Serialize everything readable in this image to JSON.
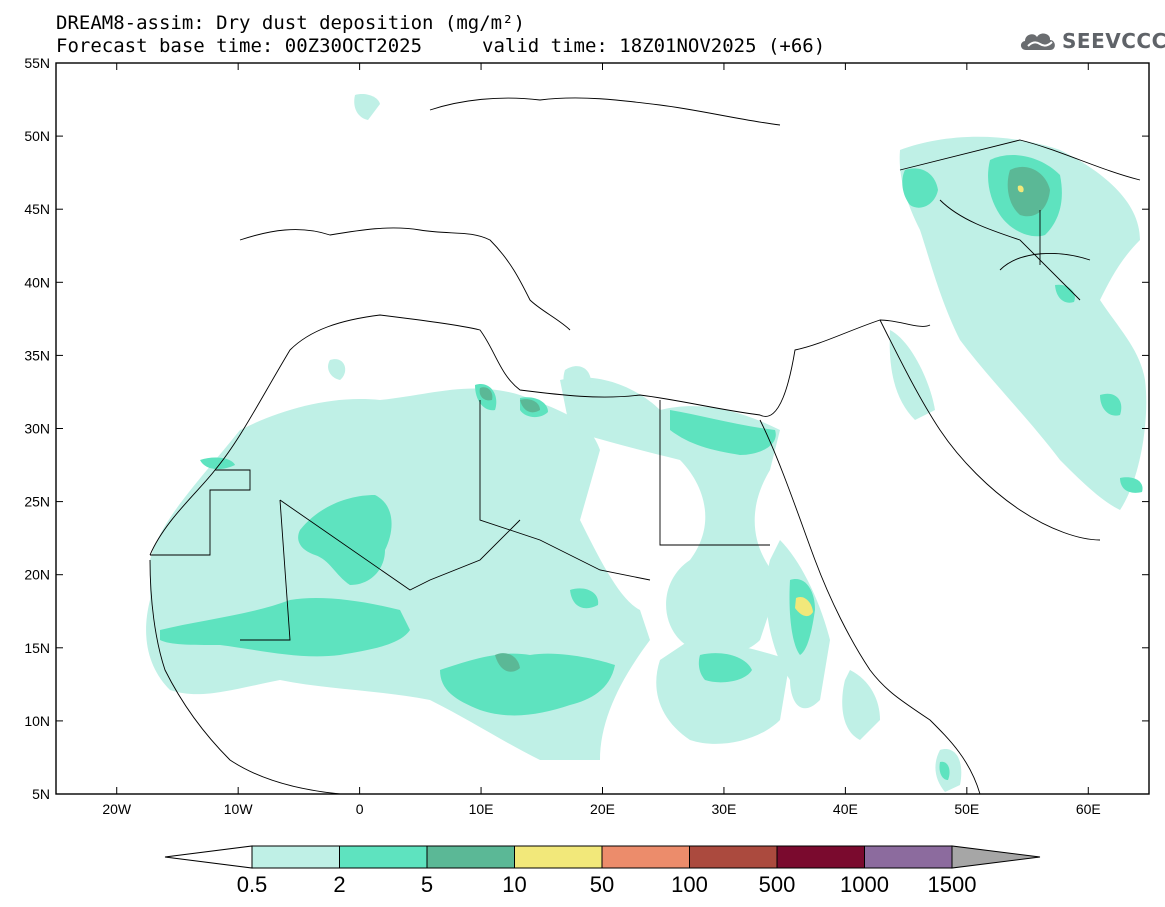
{
  "header": {
    "title": "DREAM8-assim: Dry dust deposition (mg/m²)",
    "base_time": "Forecast base time: 00Z30OCT2025",
    "valid_time": "valid time: 18Z01NOV2025 (+66)"
  },
  "logo": {
    "text": "SEEVCCC",
    "icon": "cloud-icon"
  },
  "map": {
    "lat_ticks": [
      "55N",
      "50N",
      "45N",
      "40N",
      "35N",
      "30N",
      "25N",
      "20N",
      "15N",
      "10N",
      "5N"
    ],
    "lon_ticks": [
      "20W",
      "10W",
      "0",
      "10E",
      "20E",
      "30E",
      "40E",
      "50E",
      "60E"
    ],
    "extent": {
      "lon": [
        -25,
        65
      ],
      "lat": [
        5,
        55
      ]
    }
  },
  "colorbar": {
    "labels": [
      "0.5",
      "2",
      "5",
      "10",
      "50",
      "100",
      "500",
      "1000",
      "1500"
    ],
    "colors": [
      "#bff0e6",
      "#5ee3bf",
      "#5bb896",
      "#f2e87a",
      "#ec8c6b",
      "#ab4a3e",
      "#7a0a2e",
      "#8c6b9e"
    ],
    "under_color": "#ffffff",
    "over_color": "#a6a6a6"
  }
}
